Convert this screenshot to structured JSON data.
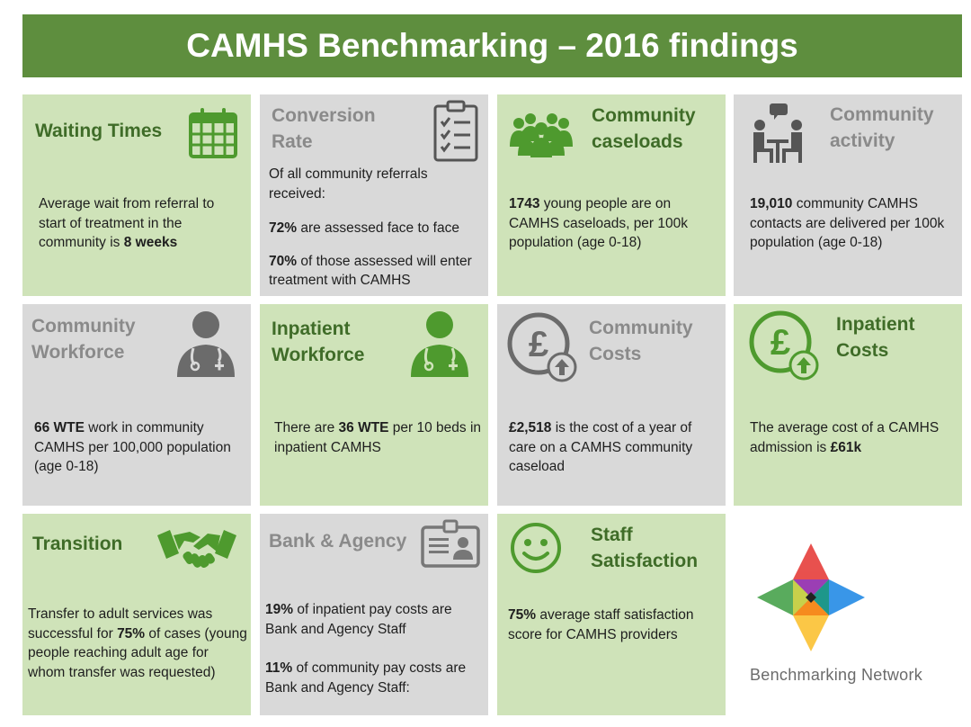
{
  "header": {
    "title": "CAMHS Benchmarking – 2016 findings"
  },
  "colors": {
    "banner": "#5e8e3e",
    "green_card": "#cfe3b9",
    "grey_card": "#d9d9d9",
    "green_text": "#3f6c28",
    "grey_text": "#8a8a8a"
  },
  "cards": {
    "waiting": {
      "title": "Waiting Times",
      "icon": "calendar-icon",
      "p1_pre": "Average wait from referral to start of treatment in the community is ",
      "p1_bold": "8 weeks"
    },
    "conversion": {
      "title_l1": "Conversion",
      "title_l2": "Rate",
      "icon": "checklist-icon",
      "intro": "Of all community referrals received:",
      "p1_bold": "72%",
      "p1_rest": " are assessed face to face",
      "p2_bold": "70%",
      "p2_rest": " of those assessed will enter treatment with CAMHS"
    },
    "caseloads": {
      "title_l1": "Community",
      "title_l2": "caseloads",
      "icon": "people-group-icon",
      "p1_bold": "1743",
      "p1_rest": " young people are on CAMHS caseloads, per 100k population (age 0-18)"
    },
    "activity": {
      "title_l1": "Community",
      "title_l2": "activity",
      "icon": "meeting-icon",
      "p1_bold": "19,010",
      "p1_rest": " community CAMHS contacts are delivered per 100k population (age 0-18)"
    },
    "comm_workforce": {
      "title_l1": "Community",
      "title_l2": "Workforce",
      "icon": "doctor-icon",
      "p1_bold": "66 WTE",
      "p1_rest": " work in community CAMHS per 100,000 population (age 0-18)"
    },
    "inp_workforce": {
      "title_l1": "Inpatient",
      "title_l2": "Workforce",
      "icon": "doctor-icon",
      "p1_pre": "There are ",
      "p1_bold": "36 WTE",
      "p1_rest": " per 10 beds in inpatient CAMHS"
    },
    "comm_costs": {
      "title_l1": "Community",
      "title_l2": "Costs",
      "icon": "pound-increase-icon",
      "p1_bold": "£2,518",
      "p1_rest": " is the cost of a year of care on a CAMHS community caseload"
    },
    "inp_costs": {
      "title_l1": "Inpatient",
      "title_l2": "Costs",
      "icon": "pound-increase-icon",
      "p1_pre": "The average cost of a CAMHS admission is ",
      "p1_bold": "£61k"
    },
    "transition": {
      "title": "Transition",
      "icon": "handshake-icon",
      "p1_pre": "Transfer to adult services was successful for ",
      "p1_bold": "75%",
      "p1_rest": " of cases (young people reaching adult age for whom transfer was requested)"
    },
    "bank": {
      "title": "Bank & Agency",
      "icon": "id-badge-icon",
      "p1_bold": "19%",
      "p1_rest": " of inpatient pay costs are Bank and Agency Staff",
      "p2_bold": "11%",
      "p2_rest": " of community pay costs are Bank and Agency Staff:"
    },
    "satisfaction": {
      "title_l1": "Staff",
      "title_l2": "Satisfaction",
      "icon": "smiley-icon",
      "p1_bold": "75%",
      "p1_rest": " average staff satisfaction score for CAMHS providers"
    }
  },
  "brand": {
    "name": "Benchmarking Network",
    "logo": "benchmarking-network-logo"
  }
}
